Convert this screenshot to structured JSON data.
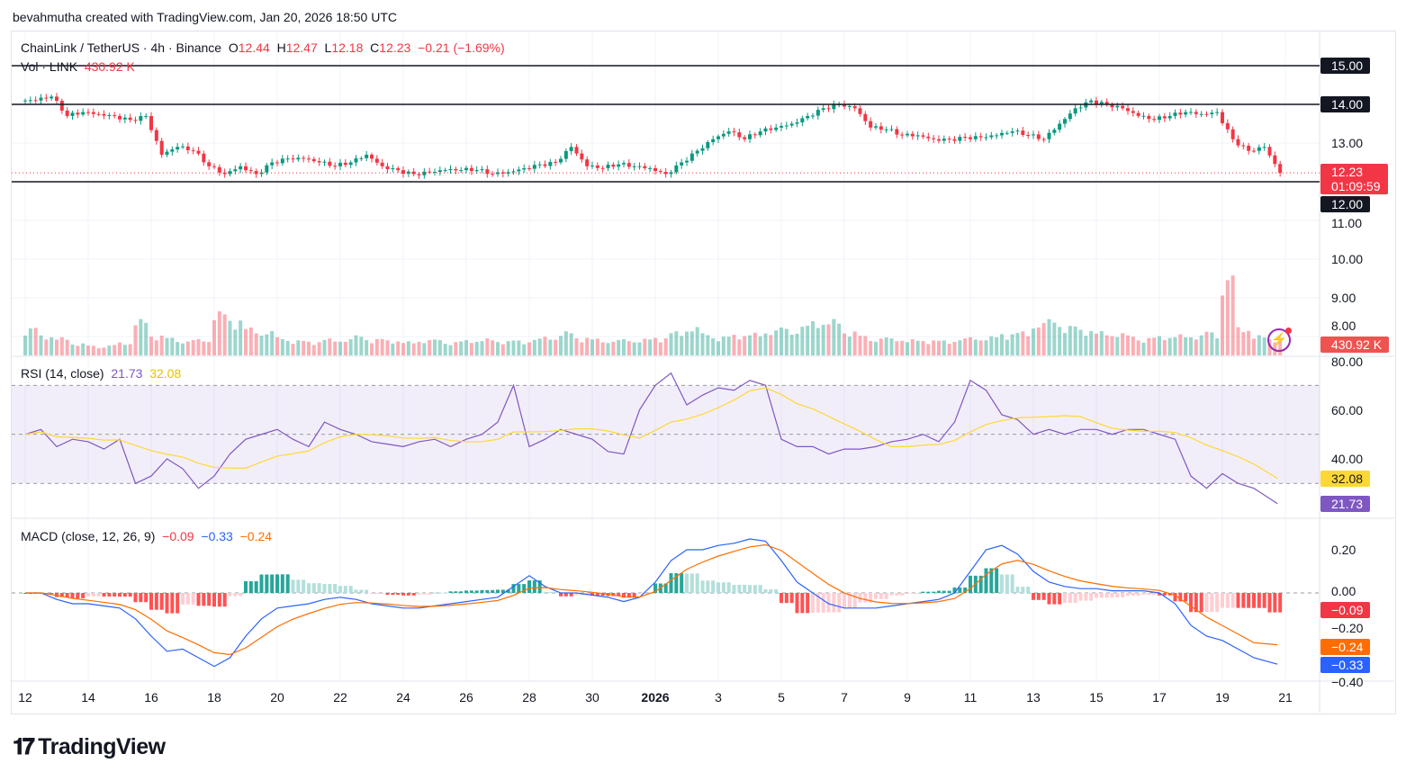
{
  "credit": "bevahmutha created with TradingView.com, Jan 20, 2026 18:50 UTC",
  "logo": "TradingView",
  "legend": {
    "symbol": "ChainLink / TetherUS · 4h · Binance",
    "o_label": "O",
    "o": "12.44",
    "h_label": "H",
    "h": "12.47",
    "l_label": "L",
    "l": "12.18",
    "c_label": "C",
    "c": "12.23",
    "change": "−0.21 (−1.69%)",
    "vol_label": "Vol · LINK",
    "vol": "430.92 K"
  },
  "rsi_legend": {
    "label": "RSI (14, close)",
    "rsi": "21.73",
    "ma": "32.08"
  },
  "macd_legend": {
    "label": "MACD (close, 12, 26, 9)",
    "hist": "−0.09",
    "macd": "−0.33",
    "signal": "−0.24"
  },
  "price_tags": {
    "line15": "15.00",
    "line14": "14.00",
    "line12": "12.00",
    "last": "12.23",
    "countdown": "01:09:59",
    "volume": "430.92 K",
    "rsi": "21.73",
    "rsi_ma": "32.08",
    "macd_hist": "−0.09",
    "macd": "−0.33",
    "signal": "−0.24"
  },
  "colors": {
    "up": "#089981",
    "down": "#f23645",
    "rsi": "#7e57c2",
    "rsi_ma": "#fdd835",
    "macd": "#2962ff",
    "signal": "#ff6d00",
    "rsi_band": "#7e57c2"
  },
  "chart_data": [
    {
      "type": "candlestick",
      "title": "ChainLink / TetherUS · 4h · Binance",
      "price_axis_ticks": [
        "15.00",
        "14.00",
        "13.00",
        "12.00",
        "11.00",
        "10.00",
        "9.00",
        "8.00"
      ],
      "time_axis_ticks": [
        "12",
        "14",
        "16",
        "18",
        "20",
        "22",
        "24",
        "26",
        "28",
        "30",
        "2026",
        "3",
        "5",
        "7",
        "9",
        "11",
        "13",
        "15",
        "17",
        "19",
        "21"
      ],
      "horizontal_lines": [
        15,
        14,
        12
      ],
      "x_step": "12h",
      "x_start": "Dec 12, 2025",
      "close": [
        14.1,
        14.2,
        13.7,
        13.8,
        13.75,
        13.7,
        13.6,
        13.7,
        12.7,
        12.9,
        12.8,
        12.4,
        12.2,
        12.4,
        12.2,
        12.5,
        12.6,
        12.6,
        12.5,
        12.4,
        12.5,
        12.7,
        12.4,
        12.3,
        12.2,
        12.25,
        12.3,
        12.3,
        12.3,
        12.2,
        12.25,
        12.35,
        12.45,
        12.5,
        12.9,
        12.4,
        12.35,
        12.45,
        12.4,
        12.35,
        12.2,
        12.5,
        12.8,
        13.1,
        13.3,
        13.1,
        13.3,
        13.4,
        13.5,
        13.7,
        13.9,
        14.0,
        13.9,
        13.4,
        13.35,
        13.2,
        13.2,
        13.1,
        13.1,
        13.15,
        13.15,
        13.2,
        13.3,
        13.2,
        13.1,
        13.5,
        13.9,
        14.1,
        14.0,
        13.9,
        13.7,
        13.6,
        13.7,
        13.8,
        13.75,
        13.8,
        13.1,
        12.8,
        12.9,
        12.23
      ],
      "volume_k": [
        700,
        500,
        450,
        300,
        250,
        260,
        320,
        900,
        500,
        450,
        380,
        400,
        1100,
        900,
        700,
        600,
        450,
        380,
        350,
        420,
        400,
        500,
        420,
        380,
        350,
        380,
        400,
        350,
        380,
        420,
        360,
        380,
        420,
        460,
        600,
        450,
        420,
        380,
        400,
        420,
        450,
        600,
        700,
        550,
        480,
        520,
        560,
        620,
        700,
        750,
        850,
        900,
        600,
        500,
        450,
        420,
        400,
        380,
        380,
        420,
        450,
        480,
        550,
        600,
        800,
        900,
        750,
        650,
        600,
        550,
        500,
        450,
        480,
        520,
        500,
        600,
        2000,
        700,
        500,
        430.92
      ],
      "current_price": 12.23
    },
    {
      "type": "line",
      "title": "RSI (14, close)",
      "ylim": [
        20,
        80
      ],
      "ticks": [
        "80.00",
        "60.00",
        "40.00"
      ],
      "band": [
        30,
        70
      ],
      "rsi": [
        50,
        52,
        45,
        48,
        47,
        44,
        48,
        30,
        33,
        40,
        36,
        28,
        33,
        42,
        48,
        50,
        52,
        48,
        45,
        55,
        52,
        50,
        47,
        46,
        45,
        47,
        48,
        45,
        48,
        50,
        55,
        70,
        45,
        48,
        52,
        50,
        48,
        43,
        42,
        60,
        70,
        75,
        62,
        66,
        69,
        68,
        72,
        70,
        48,
        45,
        45,
        42,
        44,
        44,
        45,
        47,
        48,
        50,
        47,
        55,
        72,
        68,
        58,
        56,
        50,
        52,
        50,
        52,
        52,
        50,
        52,
        52,
        50,
        48,
        33,
        28,
        34,
        30,
        28,
        21.73
      ]
    },
    {
      "type": "line",
      "title": "MACD (close, 12, 26, 9)",
      "ticks": [
        "0.20",
        "0.00",
        "−0.20",
        "−0.40"
      ],
      "macd": [
        0.0,
        0.0,
        -0.03,
        -0.05,
        -0.05,
        -0.06,
        -0.07,
        -0.12,
        -0.2,
        -0.27,
        -0.26,
        -0.3,
        -0.34,
        -0.3,
        -0.2,
        -0.12,
        -0.07,
        -0.06,
        -0.05,
        -0.03,
        -0.02,
        -0.03,
        -0.05,
        -0.06,
        -0.07,
        -0.07,
        -0.06,
        -0.05,
        -0.04,
        -0.03,
        -0.02,
        0.03,
        0.08,
        0.03,
        0.0,
        0.0,
        -0.01,
        -0.02,
        -0.04,
        -0.02,
        0.05,
        0.15,
        0.2,
        0.2,
        0.22,
        0.23,
        0.25,
        0.24,
        0.15,
        0.05,
        0.0,
        -0.05,
        -0.07,
        -0.07,
        -0.07,
        -0.06,
        -0.05,
        -0.04,
        -0.03,
        0.0,
        0.1,
        0.2,
        0.22,
        0.18,
        0.1,
        0.05,
        0.03,
        0.02,
        0.02,
        0.01,
        0.01,
        0.01,
        0.0,
        -0.05,
        -0.15,
        -0.2,
        -0.22,
        -0.26,
        -0.3,
        -0.33
      ]
    }
  ]
}
